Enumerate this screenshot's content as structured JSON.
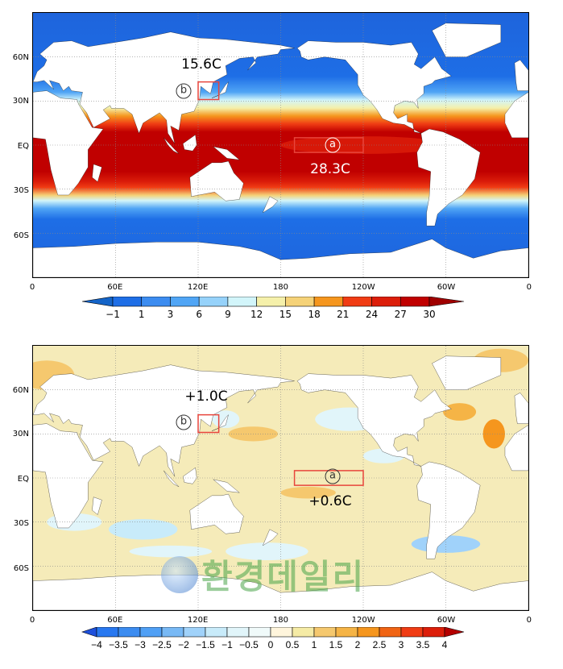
{
  "axes": {
    "lat_labels": [
      "60N",
      "30N",
      "EQ",
      "30S",
      "60S"
    ],
    "lon_labels": [
      "0",
      "60E",
      "120E",
      "180",
      "120W",
      "60W",
      "0"
    ]
  },
  "panel1": {
    "label_b_value": "15.6C",
    "label_a_value": "28.3C",
    "circle_a": "a",
    "circle_b": "b",
    "colorbar": {
      "labels": [
        "−1",
        "1",
        "3",
        "6",
        "9",
        "12",
        "15",
        "18",
        "21",
        "24",
        "27",
        "30"
      ],
      "colors": [
        "#1464c8",
        "#1e6ee6",
        "#3c8cf0",
        "#50a5f5",
        "#96d2fa",
        "#d2f5fa",
        "#f5f0aa",
        "#f5d278",
        "#f5961e",
        "#f03c14",
        "#dc1e0a",
        "#c00000",
        "#a00000"
      ]
    }
  },
  "panel2": {
    "label_b_value": "+1.0C",
    "label_a_value": "+0.6C",
    "circle_a": "a",
    "circle_b": "b",
    "colorbar": {
      "labels": [
        "−4",
        "−3.5",
        "−3",
        "−2.5",
        "−2",
        "−1.5",
        "−1",
        "−0.5",
        "0",
        "0.5",
        "1",
        "1.5",
        "2",
        "2.5",
        "3",
        "3.5",
        "4"
      ],
      "colors": [
        "#1e50dc",
        "#2878f0",
        "#3c8cf0",
        "#50a0f5",
        "#78b9f5",
        "#a0d2fa",
        "#c8ebfa",
        "#e1f5fa",
        "#f0fafa",
        "#fff5dc",
        "#f5eba5",
        "#f5c86e",
        "#f5b446",
        "#f5961e",
        "#f06414",
        "#f03c14",
        "#dc1e0a",
        "#b40000"
      ]
    }
  },
  "watermark": "환경데일리",
  "colors": {
    "land": "#ffffff",
    "box": "#e8453c"
  }
}
